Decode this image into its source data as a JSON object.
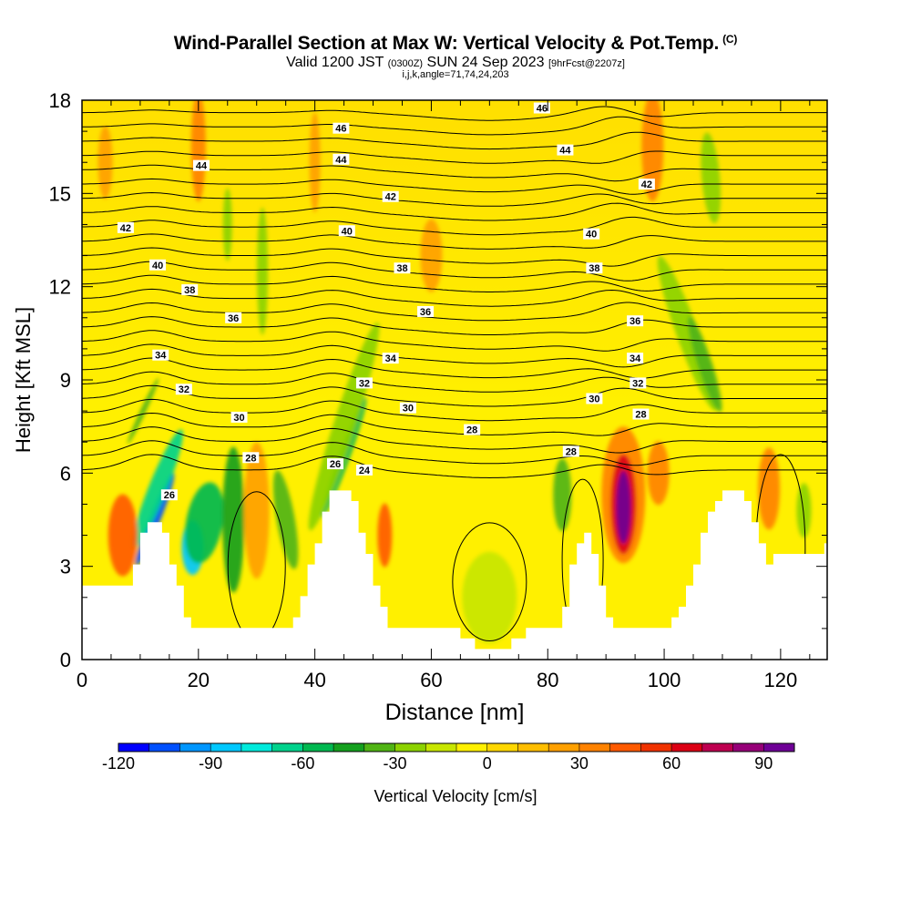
{
  "title": {
    "main": "Wind-Parallel Section at Max W: Vertical Velocity & Pot.Temp.",
    "copyright_mark": "(C)",
    "valid_prefix": "Valid 1200 JST",
    "valid_utc": "(0300Z)",
    "valid_date": "SUN 24 Sep 2023",
    "forecast": "[9hrFcst@2207z]",
    "indices": "i,j,k,angle=71,74,24,203"
  },
  "chart_data": {
    "type": "heatmap",
    "xlabel": "Distance [nm]",
    "ylabel": "Height [Kft MSL]",
    "xlim": [
      0,
      128
    ],
    "ylim": [
      0,
      18
    ],
    "x_ticks": [
      0,
      20,
      40,
      60,
      80,
      100,
      120
    ],
    "y_ticks": [
      0,
      3,
      6,
      9,
      12,
      15,
      18
    ],
    "colorbar": {
      "label": "Vertical Velocity [cm/s]",
      "min": -120,
      "max": 100,
      "step": 10,
      "tick_values": [
        -120,
        -90,
        -60,
        -30,
        0,
        30,
        60,
        90
      ],
      "colors": [
        "#0000ff",
        "#0050ff",
        "#0096ff",
        "#00c8ff",
        "#00eadc",
        "#00d28c",
        "#00b850",
        "#14a01e",
        "#50b414",
        "#8cd200",
        "#c8e600",
        "#fff000",
        "#ffd700",
        "#ffbe00",
        "#ffa000",
        "#ff8200",
        "#ff5a00",
        "#f03200",
        "#dc0014",
        "#be0050",
        "#960078",
        "#6e0096"
      ]
    },
    "terrain_ridges": [
      {
        "x": 12,
        "top_kft": 4.6
      },
      {
        "x": 44,
        "top_kft": 5.6
      },
      {
        "x": 86,
        "top_kft": 4.0
      },
      {
        "x": 111,
        "top_kft": 5.6
      }
    ],
    "velocity_features": [
      {
        "x": 12.5,
        "height_kft": 4.2,
        "value": -110
      },
      {
        "x": 19,
        "height_kft": 3.8,
        "value": -85
      },
      {
        "x": 45,
        "height_kft": 6.5,
        "value": -60
      },
      {
        "x": 93,
        "height_kft": 5.0,
        "value": 100
      },
      {
        "x": 70,
        "height_kft": 2.0,
        "value": -20
      }
    ],
    "isentropes": [
      {
        "label": "24",
        "height_kft": 6.1
      },
      {
        "label": "26",
        "height_kft": 6.8
      },
      {
        "label": "28",
        "height_kft": 7.4
      },
      {
        "label": "30",
        "height_kft": 7.9
      },
      {
        "label": "32",
        "height_kft": 8.6
      },
      {
        "label": "34",
        "height_kft": 9.3
      },
      {
        "label": "36",
        "height_kft": 11.0
      },
      {
        "label": "38",
        "height_kft": 12.6
      },
      {
        "label": "40",
        "height_kft": 13.9
      },
      {
        "label": "42",
        "height_kft": 15.0
      },
      {
        "label": "44",
        "height_kft": 16.1
      },
      {
        "label": "46",
        "height_kft": 17.4
      }
    ],
    "contour_labels": [
      {
        "text": "46",
        "x": 44.5,
        "y": 17.1
      },
      {
        "text": "46",
        "x": 79,
        "y": 17.75
      },
      {
        "text": "44",
        "x": 20.5,
        "y": 15.9
      },
      {
        "text": "44",
        "x": 44.5,
        "y": 16.1
      },
      {
        "text": "44",
        "x": 83,
        "y": 16.4
      },
      {
        "text": "42",
        "x": 7.5,
        "y": 13.9
      },
      {
        "text": "42",
        "x": 53,
        "y": 14.9
      },
      {
        "text": "42",
        "x": 97,
        "y": 15.3
      },
      {
        "text": "40",
        "x": 13,
        "y": 12.7
      },
      {
        "text": "40",
        "x": 45.5,
        "y": 13.8
      },
      {
        "text": "40",
        "x": 87.5,
        "y": 13.7
      },
      {
        "text": "38",
        "x": 18.5,
        "y": 11.9
      },
      {
        "text": "38",
        "x": 55,
        "y": 12.6
      },
      {
        "text": "38",
        "x": 88,
        "y": 12.6
      },
      {
        "text": "36",
        "x": 26,
        "y": 11.0
      },
      {
        "text": "36",
        "x": 59,
        "y": 11.2
      },
      {
        "text": "36",
        "x": 95,
        "y": 10.9
      },
      {
        "text": "34",
        "x": 13.5,
        "y": 9.8
      },
      {
        "text": "34",
        "x": 53,
        "y": 9.7
      },
      {
        "text": "34",
        "x": 95,
        "y": 9.7
      },
      {
        "text": "32",
        "x": 17.5,
        "y": 8.7
      },
      {
        "text": "32",
        "x": 48.5,
        "y": 8.9
      },
      {
        "text": "32",
        "x": 95.5,
        "y": 8.9
      },
      {
        "text": "30",
        "x": 27,
        "y": 7.8
      },
      {
        "text": "30",
        "x": 56,
        "y": 8.1
      },
      {
        "text": "30",
        "x": 88,
        "y": 8.4
      },
      {
        "text": "28",
        "x": 29,
        "y": 6.5
      },
      {
        "text": "28",
        "x": 67,
        "y": 7.4
      },
      {
        "text": "28",
        "x": 96,
        "y": 7.9
      },
      {
        "text": "28",
        "x": 84,
        "y": 6.7
      },
      {
        "text": "26",
        "x": 15,
        "y": 5.3
      },
      {
        "text": "26",
        "x": 43.5,
        "y": 6.3
      },
      {
        "text": "24",
        "x": 48.5,
        "y": 6.1
      }
    ]
  }
}
